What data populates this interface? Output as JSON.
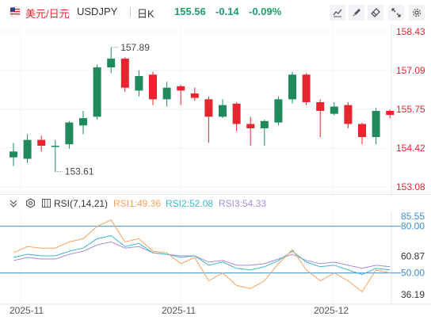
{
  "header": {
    "pair_cn": "美元/日元",
    "symbol": "USDJPY",
    "timeframe": "日K",
    "price": "155.56",
    "change": "-0.14",
    "change_pct": "-0.09%",
    "tools": [
      "chart-line-icon",
      "brush-icon",
      "eraser-icon",
      "fullscreen-icon"
    ]
  },
  "main_chart": {
    "price_levels": [
      "158.43",
      "157.09",
      "155.75",
      "154.42",
      "153.08"
    ],
    "high_label": "157.89",
    "low_label": "153.61"
  },
  "rsi_panel": {
    "name": "RSI(7,14,21)",
    "rsi1": "RSI1:49.36",
    "rsi2": "RSI2:52.08",
    "rsi3": "RSI3:54.33",
    "levels": [
      "85.55",
      "80.00",
      "60.87",
      "50.00",
      "36.19"
    ]
  },
  "x_axis": {
    "labels": [
      "2025-11",
      "2025-11",
      "2025-12"
    ]
  },
  "colors": {
    "up": "#1f8a5b",
    "down": "#e8252e",
    "rsi1": "#f5a25d",
    "rsi2": "#3fb8c8",
    "rsi3": "#a98bd8"
  },
  "chart_data": {
    "type": "candlestick",
    "ylim": [
      153.08,
      158.43
    ],
    "candles": [
      {
        "o": 154.1,
        "c": 154.3,
        "h": 154.6,
        "l": 153.8
      },
      {
        "o": 154.05,
        "c": 154.7,
        "h": 154.9,
        "l": 153.9
      },
      {
        "o": 154.7,
        "c": 154.5,
        "h": 154.85,
        "l": 154.3
      },
      {
        "o": 154.5,
        "c": 154.5,
        "h": 154.7,
        "l": 153.61
      },
      {
        "o": 154.55,
        "c": 155.3,
        "h": 155.35,
        "l": 154.4
      },
      {
        "o": 155.2,
        "c": 155.45,
        "h": 155.7,
        "l": 154.9
      },
      {
        "o": 155.5,
        "c": 157.2,
        "h": 157.3,
        "l": 155.4
      },
      {
        "o": 157.2,
        "c": 157.5,
        "h": 157.89,
        "l": 157.0
      },
      {
        "o": 157.5,
        "c": 156.5,
        "h": 157.55,
        "l": 156.35
      },
      {
        "o": 156.4,
        "c": 156.9,
        "h": 157.1,
        "l": 156.2
      },
      {
        "o": 156.95,
        "c": 156.1,
        "h": 157.05,
        "l": 155.9
      },
      {
        "o": 156.1,
        "c": 156.5,
        "h": 156.7,
        "l": 155.85
      },
      {
        "o": 156.55,
        "c": 156.4,
        "h": 156.6,
        "l": 155.9
      },
      {
        "o": 156.3,
        "c": 156.15,
        "h": 156.5,
        "l": 156.05
      },
      {
        "o": 156.1,
        "c": 155.5,
        "h": 156.2,
        "l": 154.6
      },
      {
        "o": 155.5,
        "c": 155.9,
        "h": 156.1,
        "l": 155.45
      },
      {
        "o": 155.95,
        "c": 155.25,
        "h": 156.0,
        "l": 155.0
      },
      {
        "o": 155.25,
        "c": 155.1,
        "h": 155.5,
        "l": 154.5
      },
      {
        "o": 155.1,
        "c": 155.35,
        "h": 155.4,
        "l": 154.5
      },
      {
        "o": 155.3,
        "c": 156.1,
        "h": 156.2,
        "l": 155.2
      },
      {
        "o": 156.1,
        "c": 156.95,
        "h": 157.05,
        "l": 155.95
      },
      {
        "o": 156.95,
        "c": 156.0,
        "h": 157.0,
        "l": 155.9
      },
      {
        "o": 156.0,
        "c": 155.7,
        "h": 156.1,
        "l": 154.8
      },
      {
        "o": 155.6,
        "c": 155.85,
        "h": 156.0,
        "l": 155.55
      },
      {
        "o": 155.9,
        "c": 155.25,
        "h": 156.0,
        "l": 155.1
      },
      {
        "o": 155.25,
        "c": 154.8,
        "h": 155.3,
        "l": 154.55
      },
      {
        "o": 154.8,
        "c": 155.7,
        "h": 155.8,
        "l": 154.55
      },
      {
        "o": 155.7,
        "c": 155.56,
        "h": 155.75,
        "l": 155.45
      }
    ],
    "rsi_ylim": [
      30,
      90
    ],
    "rsi1": [
      63,
      67,
      66,
      66,
      70,
      72,
      80,
      84,
      70,
      72,
      64,
      63,
      56,
      60,
      45,
      50,
      42,
      40,
      45,
      56,
      65,
      52,
      45,
      50,
      45,
      38,
      52,
      50
    ],
    "rsi2": [
      60,
      62,
      61,
      61,
      64,
      66,
      72,
      74,
      67,
      69,
      63,
      62,
      60,
      61,
      55,
      57,
      53,
      52,
      54,
      58,
      64,
      57,
      54,
      55,
      52,
      49,
      53,
      52
    ],
    "rsi3": [
      58,
      60,
      59,
      59,
      62,
      64,
      68,
      70,
      66,
      67,
      63,
      62,
      61,
      61,
      57,
      58,
      55,
      55,
      56,
      59,
      62,
      58,
      56,
      57,
      55,
      53,
      55,
      54
    ]
  }
}
